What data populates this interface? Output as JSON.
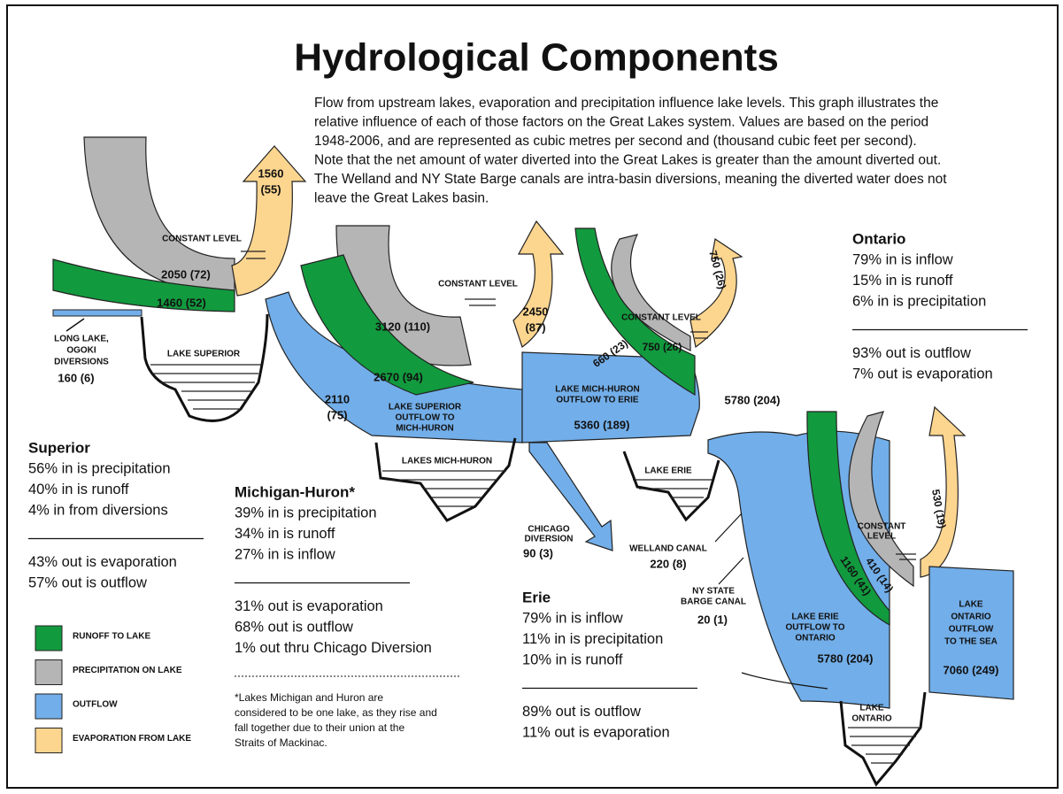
{
  "title": "Hydrological Components",
  "intro": [
    "Flow from upstream lakes, evaporation and precipitation influence lake levels. This graph illustrates the",
    "relative influence of each of those factors on the Great Lakes system.  Values are based on the period",
    "1948-2006, and are represented as cubic metres per second and (thousand cubic feet per second).",
    "Note that the net amount of water diverted into the Great Lakes is greater than the amount diverted out.",
    "The Welland and NY State Barge canals are intra-basin diversions, meaning the diverted water does not",
    "leave the Great Lakes basin."
  ],
  "diagram_labels": [
    {
      "lines": [
        "CONSTANT LEVEL"
      ]
    },
    {
      "lines": [
        "2050 (72)"
      ]
    },
    {
      "lines": [
        "1460 (52)"
      ]
    },
    {
      "lines": [
        "1560",
        "(55)"
      ]
    },
    {
      "lines": [
        "LONG LAKE,",
        "OGOKI",
        "DIVERSIONS"
      ]
    },
    {
      "lines": [
        "160 (6)"
      ]
    },
    {
      "lines": [
        "LAKE SUPERIOR"
      ]
    },
    {
      "lines": [
        "CONSTANT LEVEL"
      ]
    },
    {
      "lines": [
        "3120 (110)"
      ]
    },
    {
      "lines": [
        "2670 (94)"
      ]
    },
    {
      "lines": [
        "2110",
        "(75)"
      ]
    },
    {
      "lines": [
        "LAKE SUPERIOR",
        "OUTFLOW TO",
        "MICH-HURON"
      ]
    },
    {
      "lines": [
        "LAKES MICH-HURON"
      ]
    },
    {
      "lines": [
        "2450",
        "(87)"
      ]
    },
    {
      "lines": [
        "LAKE MICH-HURON",
        "OUTFLOW TO ERIE"
      ]
    },
    {
      "lines": [
        "5360 (189)"
      ]
    },
    {
      "lines": [
        "CHICAGO",
        "DIVERSION"
      ]
    },
    {
      "lines": [
        "90 (3)"
      ]
    },
    {
      "lines": [
        "660 (23)"
      ]
    },
    {
      "lines": [
        "750 (26)"
      ]
    },
    {
      "lines": [
        "CONSTANT LEVEL"
      ]
    },
    {
      "lines": [
        "750 (26)"
      ]
    },
    {
      "lines": [
        "LAKE ERIE"
      ]
    },
    {
      "lines": [
        "5780 (204)"
      ]
    },
    {
      "lines": [
        "WELLAND CANAL"
      ]
    },
    {
      "lines": [
        "220 (8)"
      ]
    },
    {
      "lines": [
        "NY STATE",
        "BARGE CANAL"
      ]
    },
    {
      "lines": [
        "20 (1)"
      ]
    },
    {
      "lines": [
        "CONSTANT",
        "LEVEL"
      ]
    },
    {
      "lines": [
        "530 (19)"
      ]
    },
    {
      "lines": [
        "1160 (41)"
      ]
    },
    {
      "lines": [
        "410 (14)"
      ]
    },
    {
      "lines": [
        "LAKE ERIE",
        "OUTFLOW TO",
        "ONTARIO"
      ]
    },
    {
      "lines": [
        "5780 (204)"
      ]
    },
    {
      "lines": [
        "LAKE",
        "ONTARIO",
        "OUTFLOW",
        "TO THE SEA"
      ]
    },
    {
      "lines": [
        "7060 (249)"
      ]
    },
    {
      "lines": [
        "LAKE",
        "ONTARIO"
      ]
    }
  ],
  "stats": [
    {
      "name": "Superior",
      "inflow": [
        "56% in is precipitation",
        "40% in is runoff",
        "4% in from diversions"
      ],
      "outflow": [
        "43% out is evaporation",
        "57% out is outflow"
      ]
    },
    {
      "name": "Michigan-Huron*",
      "inflow": [
        "39% in is precipitation",
        "34% in is runoff",
        "27% in is inflow"
      ],
      "outflow": [
        "31% out is evaporation",
        "68% out is outflow",
        "1% out thru  Chicago Diversion"
      ]
    },
    {
      "name": "Erie",
      "inflow": [
        "79% in is inflow",
        "11% in is precipitation",
        "10% in is runoff"
      ],
      "outflow": [
        "89% out is outflow",
        "11% out is evaporation"
      ]
    },
    {
      "name": "Ontario",
      "inflow": [
        "79% in is inflow",
        "15% in is runoff",
        "6% in is precipitation"
      ],
      "outflow": [
        "93% out is outflow",
        "7% out is evaporation"
      ]
    }
  ],
  "legend": [
    {
      "label": "RUNOFF TO LAKE",
      "color": "#129a3e"
    },
    {
      "label": "PRECIPITATION ON LAKE",
      "color": "#b5b5b5"
    },
    {
      "label": "OUTFLOW",
      "color": "#72aee9"
    },
    {
      "label": "EVAPORATION  FROM LAKE",
      "color": "#fcd58f"
    }
  ],
  "footnote": [
    "*Lakes Michigan and Huron are",
    "considered to be one lake, as they rise and",
    "fall together due to their union at the",
    "Straits of Mackinac."
  ]
}
